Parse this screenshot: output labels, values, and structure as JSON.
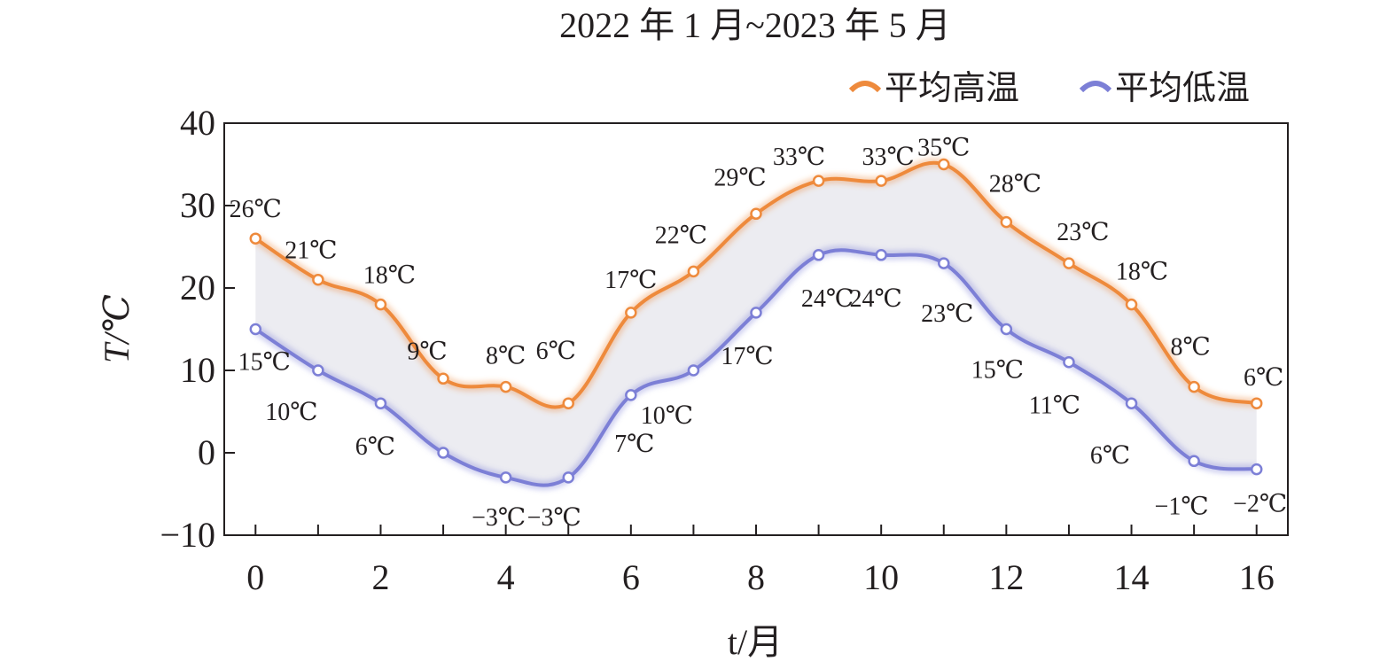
{
  "chart_data": {
    "type": "line",
    "title": "2022 年 1 月~2023 年 5 月",
    "xlabel": "t/月",
    "ylabel": "T/℃",
    "xlim": [
      -0.5,
      16.5
    ],
    "ylim": [
      -10,
      40
    ],
    "x_ticks": [
      "0",
      "2",
      "4",
      "6",
      "8",
      "10",
      "12",
      "14",
      "16"
    ],
    "y_ticks": [
      "40",
      "30",
      "20",
      "10",
      "0",
      "−10"
    ],
    "grid": false,
    "legend_position": "top-right",
    "x": [
      0,
      1,
      2,
      3,
      4,
      5,
      6,
      7,
      8,
      9,
      10,
      11,
      12,
      13,
      14,
      15,
      16
    ],
    "series": [
      {
        "name": "平均高温",
        "color": "#ee8a3c",
        "values": [
          26,
          21,
          18,
          9,
          8,
          6,
          17,
          22,
          29,
          33,
          33,
          35,
          28,
          23,
          18,
          8,
          6
        ],
        "labels": [
          "26℃",
          "21℃",
          "18℃",
          "9℃",
          "8℃",
          "6℃",
          "17℃",
          "22℃",
          "29℃",
          "33℃",
          "33℃",
          "35℃",
          "28℃",
          "23℃",
          "18℃",
          "8℃",
          "6℃"
        ]
      },
      {
        "name": "平均低温",
        "color": "#7c7fd6",
        "values": [
          15,
          10,
          6,
          0,
          -3,
          -3,
          7,
          10,
          17,
          24,
          24,
          23,
          15,
          11,
          6,
          -1,
          -2
        ],
        "labels": [
          "15℃",
          "10℃",
          "6℃",
          "",
          "−3℃",
          "−3℃",
          "7℃",
          "10℃",
          "17℃",
          "24℃",
          "24℃",
          "23℃",
          "15℃",
          "11℃",
          "6℃",
          "−1℃",
          "−2℃"
        ]
      }
    ],
    "annotations": "area between curves lightly shaded"
  }
}
